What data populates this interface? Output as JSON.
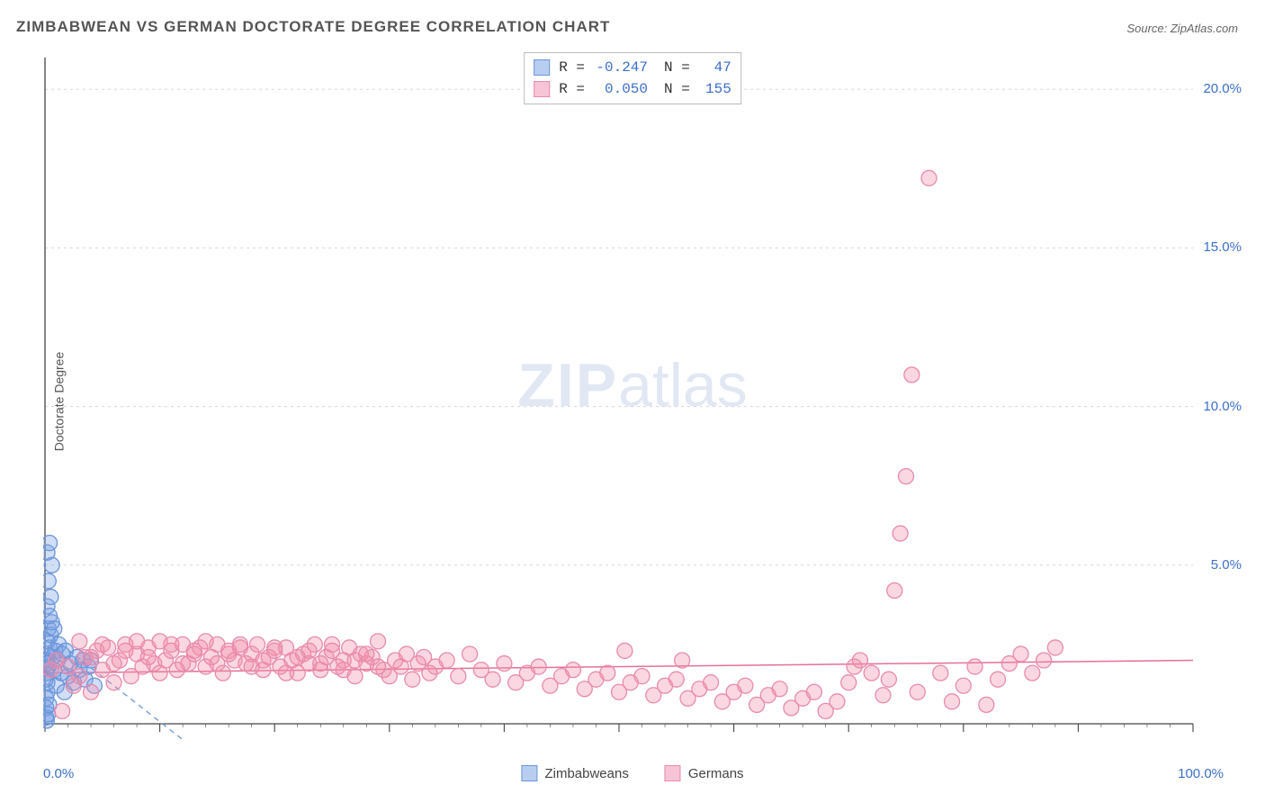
{
  "title": "ZIMBABWEAN VS GERMAN DOCTORATE DEGREE CORRELATION CHART",
  "source": "Source: ZipAtlas.com",
  "ylabel": "Doctorate Degree",
  "watermark_zip": "ZIP",
  "watermark_atlas": "atlas",
  "chart": {
    "type": "scatter",
    "xlim": [
      0,
      100
    ],
    "ylim": [
      0,
      21
    ],
    "xtick_major": [
      0,
      10,
      20,
      30,
      40,
      50,
      60,
      70,
      80,
      90,
      100
    ],
    "xtick_minor_step": 2,
    "ytick_labels": [
      {
        "v": 5,
        "label": "5.0%"
      },
      {
        "v": 10,
        "label": "10.0%"
      },
      {
        "v": 15,
        "label": "15.0%"
      },
      {
        "v": 20,
        "label": "20.0%"
      }
    ],
    "xtick_left_label": "0.0%",
    "xtick_right_label": "100.0%",
    "axis_color": "#444444",
    "grid_color": "#d8d8d8",
    "marker_radius": 8.5,
    "marker_stroke_width": 1.3,
    "series": [
      {
        "name": "Zimbabweans",
        "fill": "rgba(120,160,230,0.35)",
        "stroke": "#6a95d8",
        "swatch_fill": "#b8cef0",
        "swatch_border": "#6a95d8",
        "trend": {
          "x1": 0,
          "y1": 2.9,
          "x2": 12,
          "y2": -0.5,
          "color": "#6a95d8",
          "dash": "6,5",
          "width": 1.3
        },
        "points": [
          [
            0.1,
            0.2
          ],
          [
            0.1,
            0.5
          ],
          [
            0.1,
            0.8
          ],
          [
            0.2,
            1.0
          ],
          [
            0.2,
            1.3
          ],
          [
            0.1,
            1.6
          ],
          [
            0.3,
            1.8
          ],
          [
            0.2,
            2.0
          ],
          [
            0.1,
            2.2
          ],
          [
            0.4,
            2.4
          ],
          [
            0.2,
            2.6
          ],
          [
            0.5,
            2.8
          ],
          [
            0.3,
            3.0
          ],
          [
            0.6,
            3.2
          ],
          [
            0.4,
            3.4
          ],
          [
            0.2,
            3.7
          ],
          [
            0.7,
            2.1
          ],
          [
            0.8,
            1.7
          ],
          [
            0.9,
            2.3
          ],
          [
            1.0,
            1.2
          ],
          [
            0.5,
            4.0
          ],
          [
            0.3,
            4.5
          ],
          [
            0.6,
            5.0
          ],
          [
            0.2,
            5.4
          ],
          [
            0.4,
            5.7
          ],
          [
            0.8,
            3.0
          ],
          [
            1.1,
            2.0
          ],
          [
            1.2,
            2.5
          ],
          [
            1.4,
            1.6
          ],
          [
            1.5,
            2.2
          ],
          [
            1.7,
            1.0
          ],
          [
            1.8,
            2.3
          ],
          [
            2.0,
            1.5
          ],
          [
            2.2,
            1.9
          ],
          [
            2.5,
            1.3
          ],
          [
            2.8,
            2.1
          ],
          [
            3.0,
            1.7
          ],
          [
            3.3,
            2.0
          ],
          [
            3.5,
            1.4
          ],
          [
            3.8,
            1.8
          ],
          [
            4.0,
            2.0
          ],
          [
            4.3,
            1.2
          ],
          [
            0.15,
            0.1
          ],
          [
            0.25,
            0.3
          ],
          [
            0.35,
            0.6
          ],
          [
            0.05,
            1.4
          ],
          [
            0.15,
            1.9
          ]
        ]
      },
      {
        "name": "Germans",
        "fill": "rgba(240,140,170,0.35)",
        "stroke": "#e98aac",
        "swatch_fill": "#f6c4d6",
        "swatch_border": "#e98aac",
        "trend": {
          "x1": 0,
          "y1": 1.6,
          "x2": 100,
          "y2": 2.0,
          "color": "#e67095",
          "dash": "none",
          "width": 1.5
        },
        "points": [
          [
            0.5,
            1.7
          ],
          [
            1.0,
            2.0
          ],
          [
            1.5,
            0.4
          ],
          [
            2.0,
            1.8
          ],
          [
            2.5,
            1.2
          ],
          [
            3.0,
            1.5
          ],
          [
            3.5,
            2.1
          ],
          [
            4.0,
            1.0
          ],
          [
            4.5,
            2.3
          ],
          [
            5.0,
            1.7
          ],
          [
            5.5,
            2.4
          ],
          [
            6.0,
            1.3
          ],
          [
            6.5,
            2.0
          ],
          [
            7.0,
            2.5
          ],
          [
            7.5,
            1.5
          ],
          [
            8.0,
            2.2
          ],
          [
            8.5,
            1.8
          ],
          [
            9.0,
            2.4
          ],
          [
            9.5,
            1.9
          ],
          [
            10.0,
            2.6
          ],
          [
            10.5,
            2.0
          ],
          [
            11.0,
            2.3
          ],
          [
            11.5,
            1.7
          ],
          [
            12.0,
            2.5
          ],
          [
            12.5,
            1.9
          ],
          [
            13.0,
            2.2
          ],
          [
            13.5,
            2.4
          ],
          [
            14.0,
            1.8
          ],
          [
            14.5,
            2.1
          ],
          [
            15.0,
            2.5
          ],
          [
            15.5,
            1.6
          ],
          [
            16.0,
            2.3
          ],
          [
            16.5,
            2.0
          ],
          [
            17.0,
            2.4
          ],
          [
            17.5,
            1.9
          ],
          [
            18.0,
            2.2
          ],
          [
            18.5,
            2.5
          ],
          [
            19.0,
            1.7
          ],
          [
            19.5,
            2.1
          ],
          [
            20.0,
            2.3
          ],
          [
            20.5,
            1.8
          ],
          [
            21.0,
            2.4
          ],
          [
            21.5,
            2.0
          ],
          [
            22.0,
            1.6
          ],
          [
            22.5,
            2.2
          ],
          [
            23.0,
            1.9
          ],
          [
            23.5,
            2.5
          ],
          [
            24.0,
            1.7
          ],
          [
            24.5,
            2.1
          ],
          [
            25.0,
            2.3
          ],
          [
            25.5,
            1.8
          ],
          [
            26.0,
            2.0
          ],
          [
            26.5,
            2.4
          ],
          [
            27.0,
            1.5
          ],
          [
            27.5,
            2.2
          ],
          [
            28.0,
            1.9
          ],
          [
            28.5,
            2.1
          ],
          [
            29.0,
            2.6
          ],
          [
            29.5,
            1.7
          ],
          [
            30.0,
            1.5
          ],
          [
            30.5,
            2.0
          ],
          [
            31.0,
            1.8
          ],
          [
            31.5,
            2.2
          ],
          [
            32.0,
            1.4
          ],
          [
            32.5,
            1.9
          ],
          [
            33.0,
            2.1
          ],
          [
            33.5,
            1.6
          ],
          [
            34.0,
            1.8
          ],
          [
            35.0,
            2.0
          ],
          [
            36.0,
            1.5
          ],
          [
            37.0,
            2.2
          ],
          [
            38.0,
            1.7
          ],
          [
            39.0,
            1.4
          ],
          [
            40.0,
            1.9
          ],
          [
            41.0,
            1.3
          ],
          [
            42.0,
            1.6
          ],
          [
            43.0,
            1.8
          ],
          [
            44.0,
            1.2
          ],
          [
            45.0,
            1.5
          ],
          [
            46.0,
            1.7
          ],
          [
            47.0,
            1.1
          ],
          [
            48.0,
            1.4
          ],
          [
            49.0,
            1.6
          ],
          [
            50.0,
            1.0
          ],
          [
            50.5,
            2.3
          ],
          [
            51.0,
            1.3
          ],
          [
            52.0,
            1.5
          ],
          [
            53.0,
            0.9
          ],
          [
            54.0,
            1.2
          ],
          [
            55.0,
            1.4
          ],
          [
            55.5,
            2.0
          ],
          [
            56.0,
            0.8
          ],
          [
            57.0,
            1.1
          ],
          [
            58.0,
            1.3
          ],
          [
            59.0,
            0.7
          ],
          [
            60.0,
            1.0
          ],
          [
            61.0,
            1.2
          ],
          [
            62.0,
            0.6
          ],
          [
            63.0,
            0.9
          ],
          [
            64.0,
            1.1
          ],
          [
            65.0,
            0.5
          ],
          [
            66.0,
            0.8
          ],
          [
            67.0,
            1.0
          ],
          [
            68.0,
            0.4
          ],
          [
            69.0,
            0.7
          ],
          [
            70.0,
            1.3
          ],
          [
            70.5,
            1.8
          ],
          [
            71.0,
            2.0
          ],
          [
            72.0,
            1.6
          ],
          [
            73.0,
            0.9
          ],
          [
            73.5,
            1.4
          ],
          [
            74.0,
            4.2
          ],
          [
            74.5,
            6.0
          ],
          [
            75.0,
            7.8
          ],
          [
            75.5,
            11.0
          ],
          [
            77.0,
            17.2
          ],
          [
            76.0,
            1.0
          ],
          [
            78.0,
            1.6
          ],
          [
            79.0,
            0.7
          ],
          [
            80.0,
            1.2
          ],
          [
            81.0,
            1.8
          ],
          [
            82.0,
            0.6
          ],
          [
            83.0,
            1.4
          ],
          [
            84.0,
            1.9
          ],
          [
            85.0,
            2.2
          ],
          [
            86.0,
            1.6
          ],
          [
            87.0,
            2.0
          ],
          [
            88.0,
            2.4
          ],
          [
            3.0,
            2.6
          ],
          [
            4.0,
            2.1
          ],
          [
            5.0,
            2.5
          ],
          [
            6.0,
            1.9
          ],
          [
            7.0,
            2.3
          ],
          [
            8.0,
            2.6
          ],
          [
            9.0,
            2.1
          ],
          [
            10.0,
            1.6
          ],
          [
            11.0,
            2.5
          ],
          [
            12.0,
            1.9
          ],
          [
            13.0,
            2.3
          ],
          [
            14.0,
            2.6
          ],
          [
            15.0,
            1.9
          ],
          [
            16.0,
            2.2
          ],
          [
            17.0,
            2.5
          ],
          [
            18.0,
            1.8
          ],
          [
            19.0,
            2.0
          ],
          [
            20.0,
            2.4
          ],
          [
            21.0,
            1.6
          ],
          [
            22.0,
            2.1
          ],
          [
            23.0,
            2.3
          ],
          [
            24.0,
            1.9
          ],
          [
            25.0,
            2.5
          ],
          [
            26.0,
            1.7
          ],
          [
            27.0,
            2.0
          ],
          [
            28.0,
            2.2
          ],
          [
            29.0,
            1.8
          ]
        ]
      }
    ],
    "legend_bottom": [
      {
        "label": "Zimbabweans",
        "key": 0
      },
      {
        "label": "Germans",
        "key": 1
      }
    ],
    "stats": [
      {
        "series": 0,
        "r": "-0.247",
        "n": "47"
      },
      {
        "series": 1,
        "r": "0.050",
        "n": "155"
      }
    ]
  }
}
